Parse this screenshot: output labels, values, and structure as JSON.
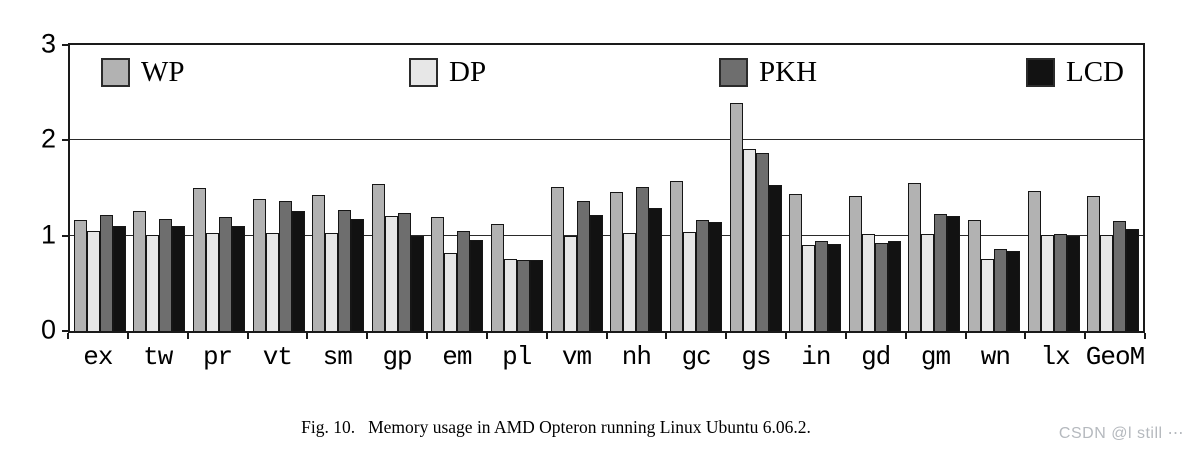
{
  "figure": {
    "caption_label": "Fig. 10.",
    "caption_text": "Memory usage in AMD Opteron running Linux Ubuntu 6.06.2.",
    "watermark": "CSDN @l still ⋯"
  },
  "chart_data": {
    "type": "bar",
    "title": "",
    "xlabel": "",
    "ylabel": "",
    "ylim": [
      0,
      3
    ],
    "ytick_labels": [
      "0",
      "1",
      "2",
      "3"
    ],
    "grid": "horizontal gridlines at y=1 and y=2",
    "legend_position": "inside top, horizontal row",
    "categories": [
      "ex",
      "tw",
      "pr",
      "vt",
      "sm",
      "gp",
      "em",
      "pl",
      "vm",
      "nh",
      "gc",
      "gs",
      "in",
      "gd",
      "gm",
      "wn",
      "lx",
      "GeoM"
    ],
    "series": [
      {
        "name": "WP",
        "color": "#b2b2b2",
        "values": [
          1.16,
          1.26,
          1.5,
          1.39,
          1.43,
          1.54,
          1.2,
          1.12,
          1.51,
          1.46,
          1.57,
          2.39,
          1.44,
          1.42,
          1.55,
          1.16,
          1.47,
          1.42
        ]
      },
      {
        "name": "DP",
        "color": "#e7e7e7",
        "values": [
          1.05,
          1.01,
          1.03,
          1.03,
          1.03,
          1.21,
          0.82,
          0.76,
          1.0,
          1.03,
          1.04,
          1.91,
          0.9,
          1.02,
          1.02,
          0.76,
          1.01,
          1.01
        ]
      },
      {
        "name": "PKH",
        "color": "#6e6e6e",
        "values": [
          1.22,
          1.17,
          1.2,
          1.36,
          1.27,
          1.24,
          1.05,
          0.75,
          1.36,
          1.51,
          1.16,
          1.87,
          0.94,
          0.92,
          1.23,
          0.86,
          1.02,
          1.15
        ]
      },
      {
        "name": "LCD",
        "color": "#121212",
        "values": [
          1.1,
          1.1,
          1.1,
          1.26,
          1.18,
          1.0,
          0.95,
          0.75,
          1.22,
          1.29,
          1.14,
          1.53,
          0.91,
          0.94,
          1.21,
          0.84,
          1.0,
          1.07
        ]
      }
    ]
  }
}
